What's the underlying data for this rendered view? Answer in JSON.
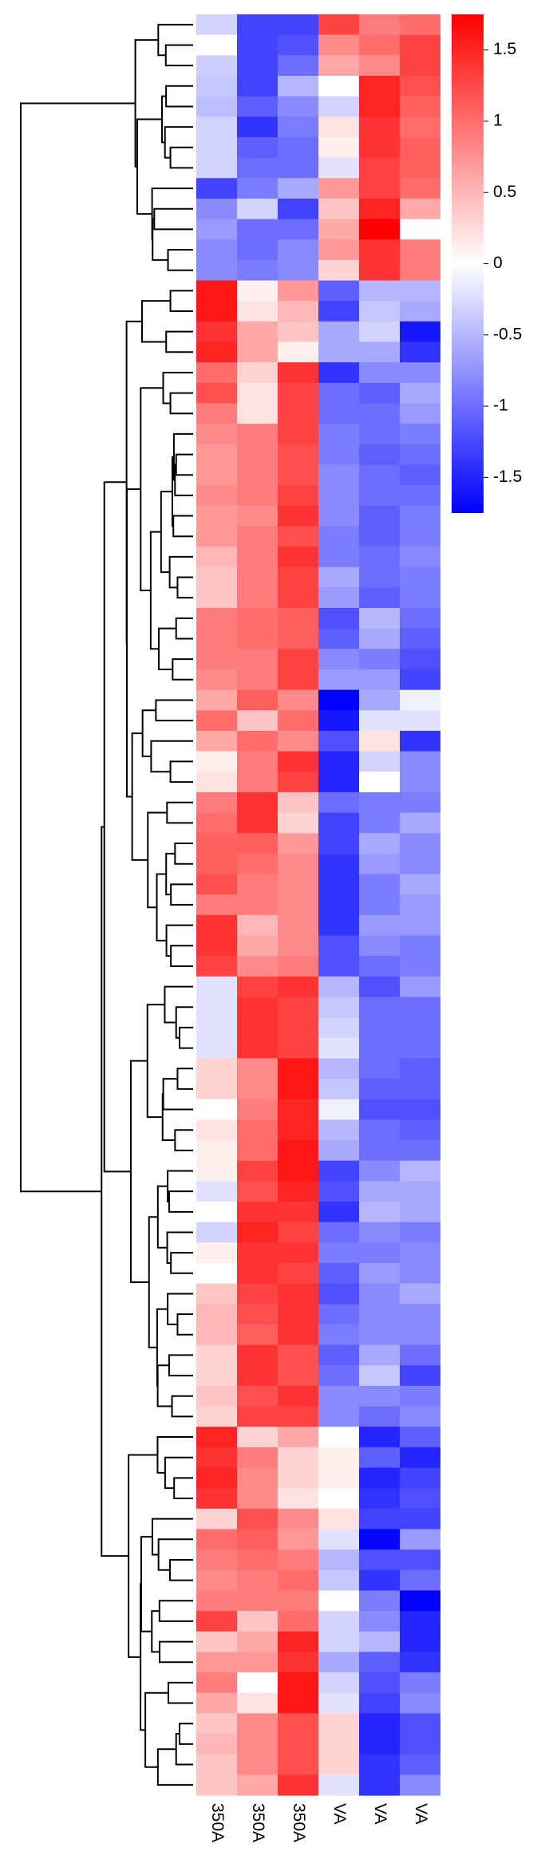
{
  "chart_data": {
    "type": "heatmap",
    "title": "",
    "columns": [
      "350A",
      "350A",
      "350A",
      "VA",
      "VA",
      "VA"
    ],
    "colorbar": {
      "ticks": [
        "1.5",
        "1",
        "0.5",
        "0",
        "-0.5",
        "-1",
        "-1.5"
      ],
      "tick_values": [
        1.5,
        1,
        0.5,
        0,
        -0.5,
        -1,
        -1.5
      ],
      "range": [
        -1.75,
        1.75
      ],
      "colors": {
        "low": "#0000ff",
        "mid": "#ffffff",
        "high": "#ff0000"
      }
    },
    "values": [
      [
        -0.3,
        -1.3,
        -1.3,
        1.3,
        0.9,
        1.0
      ],
      [
        0.0,
        -1.3,
        -1.2,
        0.8,
        1.0,
        1.3
      ],
      [
        -0.35,
        -1.3,
        -1.0,
        0.6,
        0.8,
        1.3
      ],
      [
        -0.4,
        -1.3,
        -0.5,
        0.0,
        1.5,
        1.2
      ],
      [
        -0.45,
        -1.1,
        -0.8,
        -0.3,
        1.5,
        1.1
      ],
      [
        -0.3,
        -1.4,
        -0.9,
        0.2,
        1.4,
        1.0
      ],
      [
        -0.3,
        -1.1,
        -1.0,
        0.1,
        1.4,
        1.1
      ],
      [
        -0.3,
        -1.0,
        -1.0,
        -0.2,
        1.3,
        1.1
      ],
      [
        -1.3,
        -0.9,
        -0.6,
        0.7,
        1.3,
        1.0
      ],
      [
        -0.8,
        -0.3,
        -1.3,
        0.4,
        1.5,
        0.6
      ],
      [
        -0.7,
        -1.0,
        -1.0,
        0.6,
        1.75,
        0.0
      ],
      [
        -0.8,
        -1.0,
        -0.8,
        0.7,
        1.4,
        0.9
      ],
      [
        -0.8,
        -0.9,
        -0.8,
        0.3,
        1.4,
        0.9
      ],
      [
        1.6,
        0.1,
        0.7,
        -1.1,
        -0.5,
        -0.5
      ],
      [
        1.6,
        0.2,
        0.5,
        -1.3,
        -0.4,
        -0.6
      ],
      [
        1.4,
        0.6,
        0.4,
        -0.6,
        -0.3,
        -1.6
      ],
      [
        1.5,
        0.6,
        0.1,
        -0.6,
        -0.6,
        -1.4
      ],
      [
        1.0,
        0.3,
        1.4,
        -1.4,
        -0.8,
        -0.8
      ],
      [
        1.2,
        0.2,
        1.3,
        -1.0,
        -1.1,
        -0.6
      ],
      [
        0.9,
        0.2,
        1.3,
        -1.0,
        -1.0,
        -0.7
      ],
      [
        0.8,
        0.9,
        1.3,
        -0.9,
        -1.0,
        -0.9
      ],
      [
        0.7,
        0.9,
        1.2,
        -0.9,
        -1.1,
        -1.0
      ],
      [
        0.7,
        0.9,
        1.2,
        -0.8,
        -1.0,
        -1.1
      ],
      [
        0.8,
        0.9,
        1.3,
        -0.8,
        -1.0,
        -1.0
      ],
      [
        0.7,
        0.8,
        1.4,
        -0.8,
        -1.1,
        -0.9
      ],
      [
        0.7,
        0.9,
        1.2,
        -0.9,
        -1.1,
        -0.9
      ],
      [
        0.5,
        0.9,
        1.4,
        -0.9,
        -1.0,
        -0.8
      ],
      [
        0.4,
        0.9,
        1.3,
        -0.6,
        -1.0,
        -0.9
      ],
      [
        0.4,
        0.9,
        1.3,
        -0.7,
        -1.1,
        -0.9
      ],
      [
        0.9,
        1.0,
        1.1,
        -1.2,
        -0.5,
        -1.0
      ],
      [
        0.9,
        1.0,
        1.1,
        -1.1,
        -0.6,
        -1.1
      ],
      [
        0.9,
        0.9,
        1.3,
        -0.8,
        -0.9,
        -1.2
      ],
      [
        0.8,
        0.9,
        1.3,
        -0.7,
        -0.7,
        -1.3
      ],
      [
        0.6,
        1.1,
        0.8,
        -1.75,
        -0.6,
        -0.1
      ],
      [
        1.0,
        0.4,
        1.0,
        -1.6,
        -0.2,
        -0.2
      ],
      [
        0.6,
        1.0,
        0.8,
        -1.2,
        0.2,
        -1.4
      ],
      [
        0.1,
        0.9,
        1.4,
        -1.5,
        -0.3,
        -0.8
      ],
      [
        0.2,
        0.9,
        1.3,
        -1.5,
        0.0,
        -0.8
      ],
      [
        0.9,
        1.4,
        0.4,
        -1.0,
        -0.9,
        -0.9
      ],
      [
        1.0,
        1.4,
        0.3,
        -1.3,
        -0.9,
        -0.6
      ],
      [
        1.1,
        1.1,
        0.7,
        -1.3,
        -0.6,
        -0.8
      ],
      [
        1.1,
        1.0,
        0.8,
        -1.4,
        -0.7,
        -0.8
      ],
      [
        1.2,
        0.9,
        0.8,
        -1.4,
        -0.9,
        -0.6
      ],
      [
        0.9,
        0.9,
        0.8,
        -1.4,
        -0.9,
        -0.7
      ],
      [
        1.4,
        0.5,
        0.8,
        -1.4,
        -0.7,
        -0.7
      ],
      [
        1.4,
        0.6,
        0.8,
        -1.2,
        -0.8,
        -0.9
      ],
      [
        1.3,
        0.8,
        0.9,
        -1.2,
        -1.0,
        -0.9
      ],
      [
        -0.2,
        1.3,
        1.4,
        -0.5,
        -1.2,
        -0.7
      ],
      [
        -0.2,
        1.4,
        1.3,
        -0.4,
        -1.0,
        -1.0
      ],
      [
        -0.2,
        1.4,
        1.3,
        -0.3,
        -1.0,
        -1.0
      ],
      [
        -0.2,
        1.4,
        1.3,
        -0.2,
        -1.0,
        -1.0
      ],
      [
        0.3,
        0.8,
        1.6,
        -0.5,
        -1.0,
        -1.1
      ],
      [
        0.3,
        0.8,
        1.6,
        -0.4,
        -1.1,
        -1.1
      ],
      [
        0.0,
        0.9,
        1.5,
        -0.1,
        -1.2,
        -1.2
      ],
      [
        0.2,
        1.0,
        1.5,
        -0.5,
        -1.0,
        -1.1
      ],
      [
        0.1,
        1.0,
        1.6,
        -0.6,
        -1.0,
        -1.0
      ],
      [
        0.1,
        1.3,
        1.6,
        -1.3,
        -0.8,
        -0.5
      ],
      [
        -0.2,
        1.2,
        1.5,
        -1.2,
        -0.6,
        -0.6
      ],
      [
        0.0,
        1.4,
        1.4,
        -1.4,
        -0.5,
        -0.6
      ],
      [
        -0.3,
        1.5,
        1.3,
        -1.0,
        -0.8,
        -0.9
      ],
      [
        0.1,
        1.4,
        1.4,
        -0.9,
        -0.9,
        -0.8
      ],
      [
        0.0,
        1.4,
        1.3,
        -1.1,
        -0.7,
        -0.8
      ],
      [
        0.4,
        1.3,
        1.4,
        -1.2,
        -0.8,
        -0.6
      ],
      [
        0.5,
        1.2,
        1.4,
        -1.0,
        -0.8,
        -0.8
      ],
      [
        0.5,
        1.1,
        1.4,
        -0.9,
        -0.8,
        -0.8
      ],
      [
        0.3,
        1.4,
        1.2,
        -1.1,
        -0.6,
        -1.0
      ],
      [
        0.3,
        1.4,
        1.2,
        -1.0,
        -0.4,
        -1.3
      ],
      [
        0.4,
        1.2,
        1.4,
        -0.8,
        -0.8,
        -0.9
      ],
      [
        0.3,
        1.3,
        1.3,
        -0.8,
        -1.0,
        -0.8
      ],
      [
        1.5,
        0.3,
        0.6,
        0.0,
        -1.5,
        -1.1
      ],
      [
        1.4,
        0.9,
        0.3,
        0.1,
        -1.1,
        -1.5
      ],
      [
        1.5,
        0.8,
        0.3,
        0.1,
        -1.5,
        -1.3
      ],
      [
        1.4,
        0.8,
        0.2,
        0.0,
        -1.4,
        -1.2
      ],
      [
        0.3,
        1.2,
        0.8,
        0.2,
        -1.3,
        -1.3
      ],
      [
        1.0,
        1.1,
        0.7,
        -0.2,
        -1.7,
        -0.7
      ],
      [
        0.9,
        1.0,
        0.9,
        -0.5,
        -1.2,
        -1.2
      ],
      [
        0.8,
        0.9,
        1.0,
        -0.4,
        -1.4,
        -1.0
      ],
      [
        0.9,
        0.9,
        0.9,
        0.0,
        -0.9,
        -1.75
      ],
      [
        1.3,
        0.4,
        1.0,
        -0.3,
        -0.8,
        -1.5
      ],
      [
        0.4,
        0.6,
        1.5,
        -0.3,
        -0.5,
        -1.5
      ],
      [
        0.7,
        0.7,
        1.4,
        -0.6,
        -1.1,
        -1.4
      ],
      [
        0.9,
        0.0,
        1.6,
        -0.3,
        -1.2,
        -0.9
      ],
      [
        0.6,
        0.2,
        1.6,
        -0.2,
        -1.3,
        -0.8
      ],
      [
        0.4,
        0.8,
        1.2,
        0.3,
        -1.5,
        -1.2
      ],
      [
        0.5,
        0.8,
        1.2,
        0.3,
        -1.5,
        -1.2
      ],
      [
        0.4,
        0.8,
        1.2,
        0.3,
        -1.4,
        -1.1
      ],
      [
        0.4,
        0.6,
        1.4,
        -0.2,
        -1.4,
        -0.8
      ]
    ]
  }
}
